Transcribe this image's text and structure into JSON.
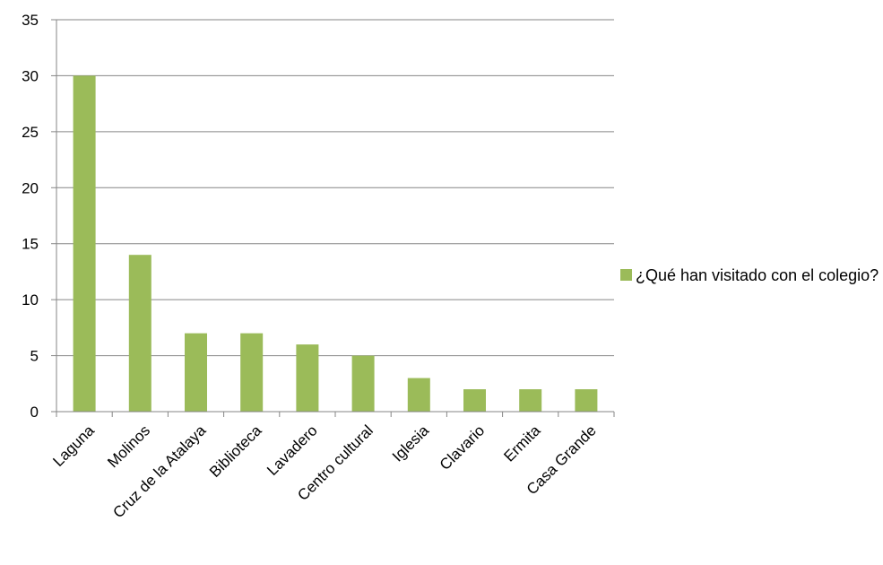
{
  "chart_data": {
    "type": "bar",
    "categories": [
      "Laguna",
      "Molinos",
      "Cruz de la Atalaya",
      "Biblioteca",
      "Lavadero",
      "Centro cultural",
      "Iglesia",
      "Clavario",
      "Ermita",
      "Casa Grande"
    ],
    "series": [
      {
        "name": "¿Qué han visitado con el colegio?",
        "values": [
          30,
          14,
          7,
          7,
          6,
          5,
          3,
          2,
          2,
          2
        ]
      }
    ],
    "ylim": [
      0,
      35
    ],
    "yticks": [
      0,
      5,
      10,
      15,
      20,
      25,
      30,
      35
    ],
    "grid": true,
    "legend_position": "right",
    "bar_color": "#9bbb59",
    "grid_color": "#868686",
    "title": "",
    "xlabel": "",
    "ylabel": ""
  }
}
